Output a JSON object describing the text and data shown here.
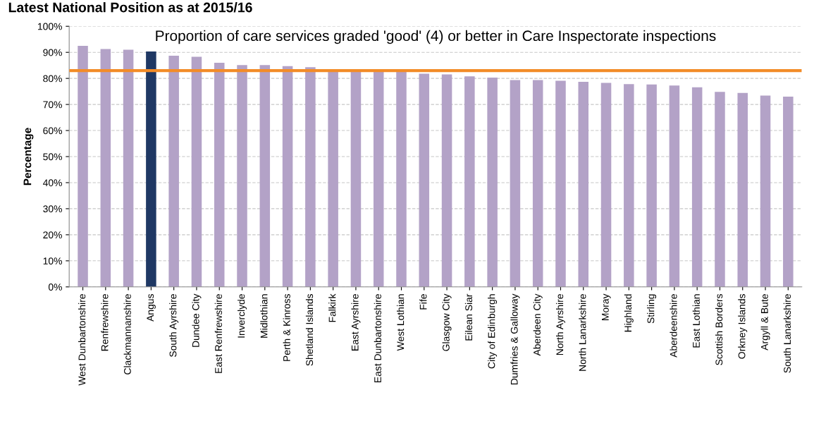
{
  "chart_data": {
    "type": "bar",
    "title": "Latest National Position as at 2015/16",
    "subtitle": "Proportion of care services graded 'good' (4) or better in Care Inspectorate inspections",
    "ylabel": "Percentage",
    "categories": [
      "West Dunbartonshire",
      "Renfrewshire",
      "Clackmannanshire",
      "Angus",
      "South Ayrshire",
      "Dundee City",
      "East Renfrewshire",
      "Inverclyde",
      "Midlothian",
      "Perth & Kinross",
      "Shetland Islands",
      "Falkirk",
      "East Ayrshire",
      "East Dunbartonshire",
      "West Lothian",
      "Fife",
      "Glasgow City",
      "Eilean Siar",
      "City of Edinburgh",
      "Dumfries & Galloway",
      "Aberdeen City",
      "North Ayrshire",
      "North Lanarkshire",
      "Moray",
      "Highland",
      "Stirling",
      "Aberdeenshire",
      "East Lothian",
      "Scottish Borders",
      "Orkney Islands",
      "Argyll & Bute",
      "South Lanarkshire"
    ],
    "values": [
      92.5,
      91.3,
      91,
      90.3,
      88.7,
      88.3,
      86,
      85.1,
      85.1,
      84.7,
      84.3,
      83,
      83,
      83,
      82.7,
      81.8,
      81.5,
      80.8,
      80.3,
      79.4,
      79.4,
      79.1,
      78.7,
      78.3,
      77.8,
      77.7,
      77.3,
      76.6,
      74.8,
      74.4,
      73.4,
      73.0
    ],
    "colors": [
      "#b3a2c7",
      "#b3a2c7",
      "#b3a2c7",
      "#1f3864",
      "#b3a2c7",
      "#b3a2c7",
      "#b3a2c7",
      "#b3a2c7",
      "#b3a2c7",
      "#b3a2c7",
      "#b3a2c7",
      "#b3a2c7",
      "#b3a2c7",
      "#b3a2c7",
      "#b3a2c7",
      "#b3a2c7",
      "#b3a2c7",
      "#b3a2c7",
      "#b3a2c7",
      "#b3a2c7",
      "#b3a2c7",
      "#b3a2c7",
      "#b3a2c7",
      "#b3a2c7",
      "#b3a2c7",
      "#b3a2c7",
      "#b3a2c7",
      "#b3a2c7",
      "#b3a2c7",
      "#b3a2c7",
      "#b3a2c7",
      "#b3a2c7"
    ],
    "ylim": [
      0,
      100
    ],
    "yticks": [
      {
        "value": 0,
        "label": "0%"
      },
      {
        "value": 10,
        "label": "10%"
      },
      {
        "value": 20,
        "label": "20%"
      },
      {
        "value": 30,
        "label": "30%"
      },
      {
        "value": 40,
        "label": "40%"
      },
      {
        "value": 50,
        "label": "50%"
      },
      {
        "value": 60,
        "label": "60%"
      },
      {
        "value": 70,
        "label": "70%"
      },
      {
        "value": 80,
        "label": "80%"
      },
      {
        "value": 90,
        "label": "90%"
      },
      {
        "value": 100,
        "label": "100%"
      }
    ],
    "ref_lines": [
      {
        "axis": "y",
        "value": 83,
        "label": null,
        "color": "#f28c28",
        "line_style": "solid"
      }
    ],
    "grid": "y"
  }
}
